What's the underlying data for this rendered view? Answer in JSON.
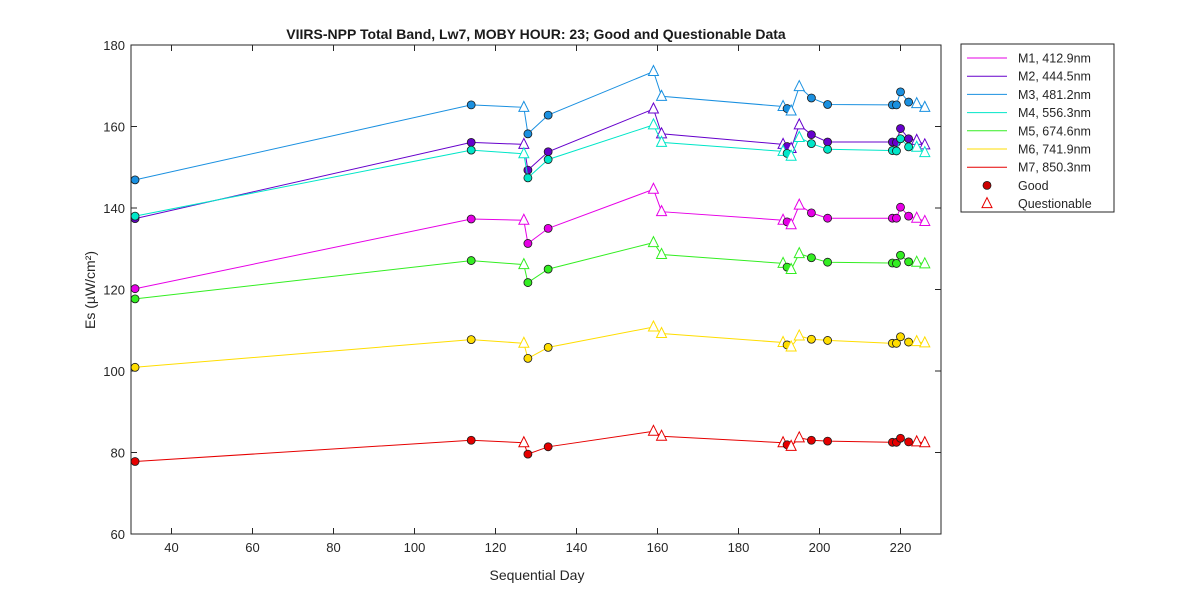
{
  "chart_data": {
    "type": "line",
    "title": "VIIRS-NPP Total Band,  Lw7, MOBY HOUR: 23;  Good and Questionable Data",
    "xlabel": "Sequential Day",
    "ylabel": "Es (µW/cm²)",
    "xlim": [
      30,
      230
    ],
    "ylim": [
      60,
      180
    ],
    "xticks": [
      40,
      60,
      80,
      100,
      120,
      140,
      160,
      180,
      200,
      220
    ],
    "yticks": [
      60,
      80,
      100,
      120,
      140,
      160,
      180
    ],
    "grid": false,
    "legend_position": "outside-right",
    "x": [
      31,
      114,
      127,
      128,
      133,
      159,
      161,
      191,
      192,
      193,
      195,
      198,
      202,
      218,
      219,
      220,
      222,
      224,
      226
    ],
    "quality": [
      "good",
      "good",
      "questionable",
      "good",
      "good",
      "questionable",
      "questionable",
      "questionable",
      "good",
      "questionable",
      "questionable",
      "good",
      "good",
      "good",
      "good",
      "good",
      "good",
      "questionable",
      "questionable"
    ],
    "series": [
      {
        "name": "M1, 412.9nm",
        "color": "#e600e6",
        "values": [
          120.2,
          137.3,
          137.0,
          131.3,
          135.0,
          144.6,
          139.1,
          137.0,
          136.6,
          135.9,
          140.7,
          138.8,
          137.5,
          137.5,
          137.5,
          140.2,
          138.0,
          137.5,
          136.7
        ]
      },
      {
        "name": "M2, 444.5nm",
        "color": "#6600cc",
        "values": [
          137.4,
          156.1,
          155.6,
          149.3,
          153.8,
          164.3,
          158.2,
          155.6,
          155.1,
          154.6,
          160.4,
          158.0,
          156.2,
          156.2,
          156.1,
          159.5,
          157.0,
          156.6,
          155.5
        ]
      },
      {
        "name": "M3, 481.2nm",
        "color": "#1a90e0",
        "values": [
          146.9,
          165.3,
          164.7,
          158.2,
          162.8,
          173.5,
          167.4,
          164.9,
          164.4,
          163.8,
          169.8,
          167.0,
          165.4,
          165.3,
          165.3,
          168.5,
          166.0,
          165.6,
          164.7
        ]
      },
      {
        "name": "M4, 556.3nm",
        "color": "#00e6c8",
        "values": [
          138.0,
          154.2,
          153.3,
          147.4,
          151.9,
          160.4,
          156.1,
          153.9,
          153.4,
          152.7,
          157.3,
          155.8,
          154.4,
          154.1,
          154.0,
          157.0,
          155.0,
          154.9,
          153.6
        ]
      },
      {
        "name": "M5, 674.6nm",
        "color": "#33ee22",
        "values": [
          117.7,
          127.1,
          126.1,
          121.7,
          125.0,
          131.5,
          128.6,
          126.4,
          125.5,
          124.9,
          128.8,
          127.8,
          126.7,
          126.5,
          126.4,
          128.4,
          126.8,
          126.7,
          126.3
        ]
      },
      {
        "name": "M6, 741.9nm",
        "color": "#ffdd00",
        "values": [
          100.9,
          107.7,
          106.8,
          103.1,
          105.8,
          110.8,
          109.2,
          107.0,
          106.4,
          105.9,
          108.6,
          107.8,
          107.5,
          106.8,
          106.8,
          108.4,
          107.1,
          107.2,
          106.9
        ]
      },
      {
        "name": "M7, 850.3nm",
        "color": "#e60000",
        "values": [
          77.8,
          83.0,
          82.4,
          79.6,
          81.4,
          85.2,
          84.0,
          82.4,
          81.9,
          81.5,
          83.6,
          83.0,
          82.8,
          82.5,
          82.5,
          83.5,
          82.6,
          82.6,
          82.4
        ]
      }
    ],
    "legend": {
      "good_label": "Good",
      "questionable_label": "Questionable",
      "good_color": "#cc0000",
      "questionable_color": "#e60000"
    }
  }
}
